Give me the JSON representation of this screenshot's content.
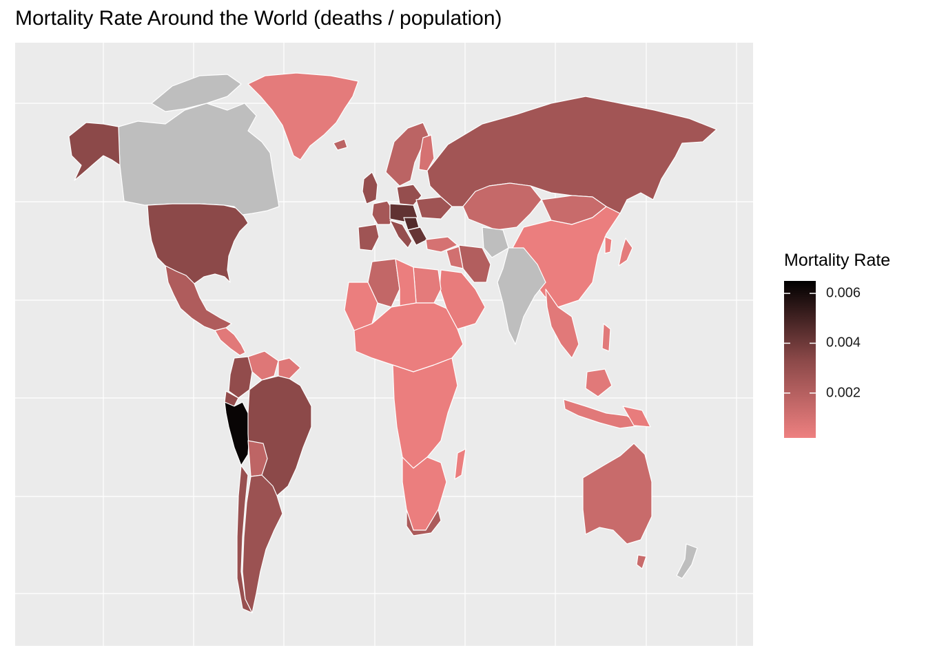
{
  "chart_data": {
    "type": "choropleth",
    "title": "Mortality Rate Around the World (deaths / population)",
    "xlabel": "",
    "ylabel": "",
    "grid": true,
    "legend": {
      "title": "Mortality Rate",
      "placement": "right",
      "range": [
        0.0002,
        0.0065
      ],
      "ticks": [
        "0.002",
        "0.004",
        "0.006"
      ],
      "tick_values": [
        0.002,
        0.004,
        0.006
      ],
      "low_color": "#ee8080",
      "high_color": "#000000"
    },
    "no_data_color": "#bebebe",
    "panel_color": "#ebebeb",
    "border_color": "#ffffff",
    "regions": [
      {
        "name": "Peru",
        "value": 0.0063
      },
      {
        "name": "Hungary",
        "value": 0.0046
      },
      {
        "name": "Czechia",
        "value": 0.0043
      },
      {
        "name": "Bulgaria",
        "value": 0.0042
      },
      {
        "name": "Brazil",
        "value": 0.0033
      },
      {
        "name": "United States",
        "value": 0.0033
      },
      {
        "name": "Colombia",
        "value": 0.0031
      },
      {
        "name": "Argentina",
        "value": 0.0028
      },
      {
        "name": "Chile",
        "value": 0.0029
      },
      {
        "name": "United Kingdom",
        "value": 0.003
      },
      {
        "name": "Italy",
        "value": 0.003
      },
      {
        "name": "Spain",
        "value": 0.0027
      },
      {
        "name": "Poland",
        "value": 0.003
      },
      {
        "name": "France",
        "value": 0.0025
      },
      {
        "name": "Russia",
        "value": 0.0026
      },
      {
        "name": "Ukraine",
        "value": 0.0027
      },
      {
        "name": "Iran",
        "value": 0.0021
      },
      {
        "name": "Mexico",
        "value": 0.0022
      },
      {
        "name": "South Africa",
        "value": 0.0023
      },
      {
        "name": "Sweden",
        "value": 0.0018
      },
      {
        "name": "Bolivia",
        "value": 0.0017
      },
      {
        "name": "Algeria",
        "value": 0.0016
      },
      {
        "name": "Kazakhstan",
        "value": 0.0015
      },
      {
        "name": "Mongolia",
        "value": 0.0014
      },
      {
        "name": "Australia",
        "value": 0.0014
      },
      {
        "name": "Iraq",
        "value": 0.0011
      },
      {
        "name": "Turkey",
        "value": 0.001
      },
      {
        "name": "Venezuela",
        "value": 0.0007
      },
      {
        "name": "Greenland",
        "value": 0.0005
      },
      {
        "name": "China",
        "value": 0.0003
      },
      {
        "name": "Saudi Arabia",
        "value": 0.0004
      },
      {
        "name": "Egypt",
        "value": 0.0005
      },
      {
        "name": "Indonesia",
        "value": 0.0006
      },
      {
        "name": "Africa (other)",
        "value": 0.0003
      },
      {
        "name": "Southeast Asia (other)",
        "value": 0.0006
      },
      {
        "name": "Finland",
        "value": 0.001
      },
      {
        "name": "Mongolia (east)",
        "value": 0.0014
      },
      {
        "name": "Canada",
        "value": null
      },
      {
        "name": "India",
        "value": null
      },
      {
        "name": "Afghanistan",
        "value": null
      },
      {
        "name": "New Zealand",
        "value": null
      },
      {
        "name": "Papua New Guinea",
        "value": 0.0004
      },
      {
        "name": "Japan",
        "value": 0.0005
      },
      {
        "name": "Madagascar",
        "value": 0.0003
      }
    ]
  }
}
